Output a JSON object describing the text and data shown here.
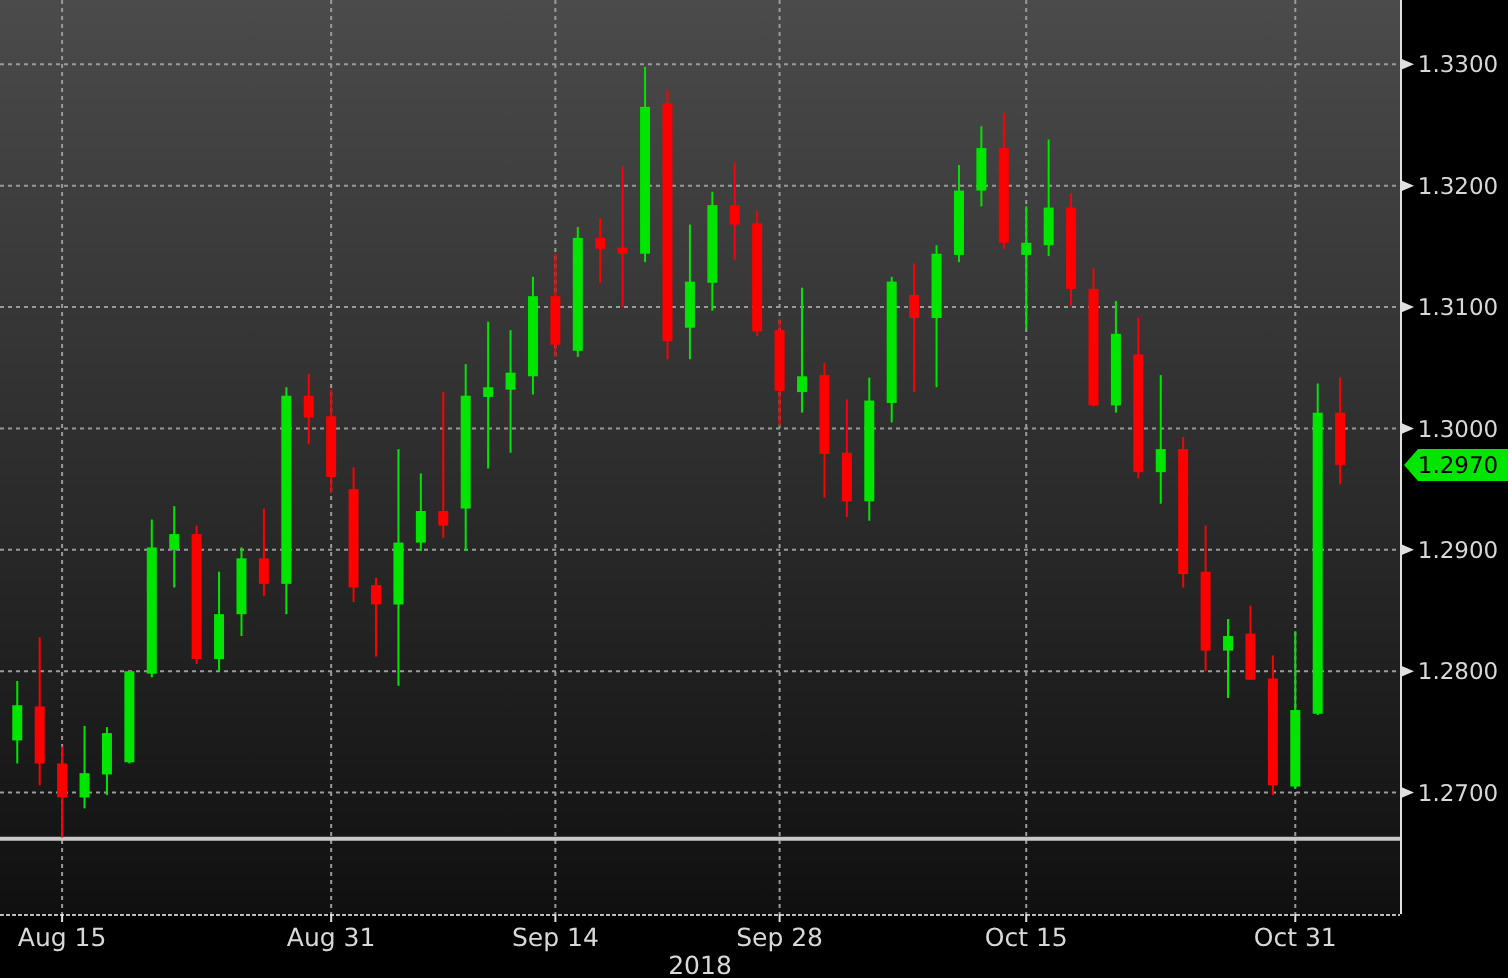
{
  "chart_data": {
    "type": "candlestick",
    "categories": [
      null,
      null,
      "Aug 15",
      null,
      null,
      null,
      null,
      null,
      null,
      null,
      null,
      null,
      null,
      null,
      "Aug 31",
      null,
      null,
      null,
      null,
      null,
      null,
      null,
      null,
      null,
      "Sep 14",
      null,
      null,
      null,
      null,
      null,
      null,
      null,
      null,
      null,
      "Sep 28",
      null,
      null,
      null,
      null,
      null,
      null,
      null,
      null,
      null,
      null,
      "Oct 15",
      null,
      null,
      null,
      null,
      null,
      null,
      null,
      null,
      null,
      null,
      null,
      "Oct 31",
      null,
      null
    ],
    "ohlc": [
      [
        1.2743,
        1.2792,
        1.2724,
        1.2772
      ],
      [
        1.2771,
        1.2828,
        1.2706,
        1.2724
      ],
      [
        1.2724,
        1.2738,
        1.2663,
        1.2696
      ],
      [
        1.2696,
        1.2755,
        1.2687,
        1.2716
      ],
      [
        1.2715,
        1.2754,
        1.2698,
        1.2749
      ],
      [
        1.2725,
        1.28,
        1.2724,
        1.28
      ],
      [
        1.2798,
        1.2925,
        1.2795,
        1.2902
      ],
      [
        1.29,
        1.2936,
        1.2869,
        1.2913
      ],
      [
        1.2913,
        1.292,
        1.2806,
        1.281
      ],
      [
        1.281,
        1.2882,
        1.28,
        1.2847
      ],
      [
        1.2847,
        1.2902,
        1.2829,
        1.2893
      ],
      [
        1.2893,
        1.2934,
        1.2862,
        1.2872
      ],
      [
        1.2872,
        1.3034,
        1.2847,
        1.3027
      ],
      [
        1.3027,
        1.3045,
        1.2987,
        1.3009
      ],
      [
        1.301,
        1.3032,
        1.2947,
        1.296
      ],
      [
        1.295,
        1.2968,
        1.2857,
        1.2869
      ],
      [
        1.2871,
        1.2877,
        1.2812,
        1.2855
      ],
      [
        1.2855,
        1.2983,
        1.2788,
        1.2906
      ],
      [
        1.2906,
        1.2963,
        1.2899,
        1.2932
      ],
      [
        1.2932,
        1.303,
        1.291,
        1.292
      ],
      [
        1.2934,
        1.3053,
        1.2899,
        1.3027
      ],
      [
        1.3026,
        1.3088,
        1.2967,
        1.3034
      ],
      [
        1.3032,
        1.3081,
        1.298,
        1.3046
      ],
      [
        1.3043,
        1.3125,
        1.3028,
        1.3109
      ],
      [
        1.3109,
        1.3144,
        1.3059,
        1.3069
      ],
      [
        1.3064,
        1.3166,
        1.3059,
        1.3157
      ],
      [
        1.3157,
        1.3173,
        1.312,
        1.3148
      ],
      [
        1.3149,
        1.3216,
        1.31,
        1.3144
      ],
      [
        1.3144,
        1.3298,
        1.3137,
        1.3265
      ],
      [
        1.3268,
        1.3279,
        1.3057,
        1.3072
      ],
      [
        1.3083,
        1.3168,
        1.3057,
        1.3121
      ],
      [
        1.312,
        1.3195,
        1.3097,
        1.3184
      ],
      [
        1.3184,
        1.3219,
        1.3139,
        1.3168
      ],
      [
        1.3169,
        1.3179,
        1.3076,
        1.308
      ],
      [
        1.3081,
        1.309,
        1.3002,
        1.3031
      ],
      [
        1.303,
        1.3116,
        1.3013,
        1.3043
      ],
      [
        1.3044,
        1.3054,
        1.2943,
        1.2979
      ],
      [
        1.298,
        1.3024,
        1.2927,
        1.294
      ],
      [
        1.294,
        1.3042,
        1.2924,
        1.3023
      ],
      [
        1.3021,
        1.3125,
        1.3005,
        1.3121
      ],
      [
        1.311,
        1.3136,
        1.303,
        1.3091
      ],
      [
        1.3091,
        1.3151,
        1.3034,
        1.3144
      ],
      [
        1.3143,
        1.3217,
        1.3137,
        1.3196
      ],
      [
        1.3196,
        1.3249,
        1.3183,
        1.3231
      ],
      [
        1.3231,
        1.326,
        1.3148,
        1.3153
      ],
      [
        1.3143,
        1.3183,
        1.3082,
        1.3153
      ],
      [
        1.3151,
        1.3238,
        1.3142,
        1.3182
      ],
      [
        1.3182,
        1.3194,
        1.3101,
        1.3115
      ],
      [
        1.3115,
        1.3132,
        1.3018,
        1.3019
      ],
      [
        1.3019,
        1.3105,
        1.3013,
        1.3078
      ],
      [
        1.3061,
        1.3091,
        1.2959,
        1.2964
      ],
      [
        1.2964,
        1.3044,
        1.2938,
        1.2983
      ],
      [
        1.2983,
        1.2993,
        1.2869,
        1.288
      ],
      [
        1.2882,
        1.292,
        1.28,
        1.2817
      ],
      [
        1.2817,
        1.2843,
        1.2778,
        1.2829
      ],
      [
        1.2831,
        1.2854,
        1.2793,
        1.2793
      ],
      [
        1.2794,
        1.2813,
        1.2698,
        1.2706
      ],
      [
        1.2705,
        1.2833,
        1.2703,
        1.2768
      ],
      [
        1.2765,
        1.3037,
        1.2764,
        1.3013
      ],
      [
        1.3013,
        1.3042,
        1.2954,
        1.297
      ]
    ],
    "colors": [
      "#00e600",
      "#ff0000",
      "#ff0000",
      "#00e600",
      "#00e600",
      "#00e600",
      "#00e600",
      "#00e600",
      "#ff0000",
      "#00e600",
      "#00e600",
      "#ff0000",
      "#00e600",
      "#ff0000",
      "#ff0000",
      "#ff0000",
      "#ff0000",
      "#00e600",
      "#00e600",
      "#ff0000",
      "#00e600",
      "#00e600",
      "#00e600",
      "#00e600",
      "#ff0000",
      "#00e600",
      "#ff0000",
      "#ff0000",
      "#00e600",
      "#ff0000",
      "#00e600",
      "#00e600",
      "#ff0000",
      "#ff0000",
      "#ff0000",
      "#00e600",
      "#ff0000",
      "#ff0000",
      "#00e600",
      "#00e600",
      "#ff0000",
      "#00e600",
      "#00e600",
      "#00e600",
      "#ff0000",
      "#00e600",
      "#00e600",
      "#ff0000",
      "#ff0000",
      "#00e600",
      "#ff0000",
      "#00e600",
      "#ff0000",
      "#ff0000",
      "#00e600",
      "#ff0000",
      "#ff0000",
      "#00e600",
      "#00e600",
      "#ff0000"
    ],
    "xlabel": "2018",
    "ylim": [
      1.26,
      1.3353
    ],
    "yticks": [
      {
        "value": 1.27,
        "label": "1.2700"
      },
      {
        "value": 1.28,
        "label": "1.2800"
      },
      {
        "value": 1.29,
        "label": "1.2900"
      },
      {
        "value": 1.3,
        "label": "1.3000"
      },
      {
        "value": 1.31,
        "label": "1.3100"
      },
      {
        "value": 1.32,
        "label": "1.3200"
      },
      {
        "value": 1.33,
        "label": "1.3300"
      }
    ],
    "grid": true,
    "ref_lines": [
      {
        "axis": "y",
        "value": 1.2662,
        "color": "#c8c8c8"
      }
    ],
    "annotations": [
      "1.2970"
    ]
  }
}
